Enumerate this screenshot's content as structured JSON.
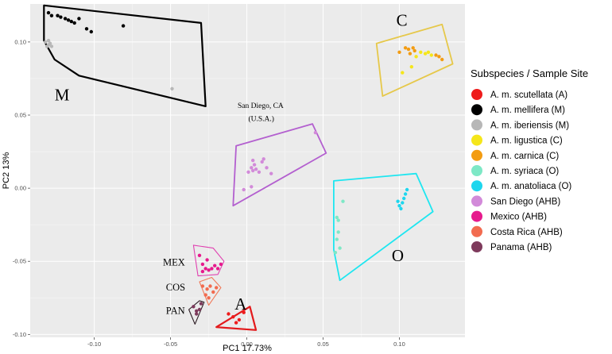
{
  "chart_data": {
    "type": "scatter",
    "xlabel": "PC1 17.73%",
    "ylabel": "PC2 13%",
    "xlim": [
      -0.142,
      0.143
    ],
    "ylim": [
      -0.102,
      0.126
    ],
    "xticks": [
      -0.1,
      -0.05,
      0.0,
      0.05,
      0.1
    ],
    "xtick_labels": [
      "-0.10",
      "-0.05",
      "0.00",
      "0.05",
      "0.10"
    ],
    "yticks": [
      -0.1,
      -0.05,
      0.0,
      0.05,
      0.1
    ],
    "ytick_labels": [
      "-0.10",
      "-0.05",
      "0.00",
      "0.05",
      "0.10"
    ],
    "grid": true,
    "legend": {
      "title": "Subspecies / Sample Site",
      "position": "right"
    },
    "series": [
      {
        "name": "A. m. scutellata (A)",
        "color": "#ee1c1c",
        "points": [
          [
            -0.012,
            -0.086
          ],
          [
            -0.009,
            -0.088
          ],
          [
            -0.005,
            -0.09
          ],
          [
            -0.007,
            -0.092
          ],
          [
            -0.002,
            -0.085
          ]
        ]
      },
      {
        "name": "A. m. mellifera (M)",
        "color": "#000000",
        "points": [
          [
            -0.13,
            0.12
          ],
          [
            -0.128,
            0.118
          ],
          [
            -0.124,
            0.118
          ],
          [
            -0.122,
            0.117
          ],
          [
            -0.119,
            0.116
          ],
          [
            -0.117,
            0.115
          ],
          [
            -0.115,
            0.114
          ],
          [
            -0.113,
            0.113
          ],
          [
            -0.11,
            0.116
          ],
          [
            -0.105,
            0.109
          ],
          [
            -0.102,
            0.107
          ],
          [
            -0.081,
            0.111
          ]
        ]
      },
      {
        "name": "A. m. iberiensis (M)",
        "color": "#b7b7b7",
        "points": [
          [
            -0.132,
            0.1
          ],
          [
            -0.13,
            0.098
          ],
          [
            -0.131,
            0.097
          ],
          [
            -0.129,
            0.099
          ],
          [
            -0.128,
            0.097
          ],
          [
            -0.13,
            0.101
          ],
          [
            -0.049,
            0.068
          ]
        ]
      },
      {
        "name": "A. m. ligustica (C)",
        "color": "#f5e61a",
        "points": [
          [
            0.102,
            0.079
          ],
          [
            0.108,
            0.083
          ],
          [
            0.111,
            0.09
          ],
          [
            0.114,
            0.093
          ],
          [
            0.117,
            0.092
          ],
          [
            0.119,
            0.093
          ],
          [
            0.121,
            0.091
          ]
        ]
      },
      {
        "name": "A. m. carnica (C)",
        "color": "#f39c12",
        "points": [
          [
            0.1,
            0.093
          ],
          [
            0.104,
            0.096
          ],
          [
            0.106,
            0.095
          ],
          [
            0.107,
            0.092
          ],
          [
            0.109,
            0.096
          ],
          [
            0.11,
            0.094
          ],
          [
            0.124,
            0.091
          ],
          [
            0.126,
            0.09
          ],
          [
            0.128,
            0.088
          ]
        ]
      },
      {
        "name": "A. m. syriaca (O)",
        "color": "#7ee8c6",
        "points": [
          [
            0.059,
            -0.02
          ],
          [
            0.06,
            -0.03
          ],
          [
            0.059,
            -0.035
          ],
          [
            0.061,
            -0.041
          ],
          [
            0.058,
            -0.044
          ],
          [
            0.06,
            -0.022
          ],
          [
            0.063,
            -0.009
          ]
        ]
      },
      {
        "name": "A. m. anatoliaca (O)",
        "color": "#1ed6ee",
        "points": [
          [
            0.099,
            -0.009
          ],
          [
            0.1,
            -0.012
          ],
          [
            0.101,
            -0.014
          ],
          [
            0.102,
            -0.01
          ],
          [
            0.103,
            -0.007
          ],
          [
            0.104,
            -0.004
          ],
          [
            0.105,
            -0.001
          ]
        ]
      },
      {
        "name": "San Diego (AHB)",
        "color": "#d28ad9",
        "points": [
          [
            -0.002,
            -0.001
          ],
          [
            0.003,
            0.001
          ],
          [
            0.001,
            0.011
          ],
          [
            0.003,
            0.014
          ],
          [
            0.004,
            0.012
          ],
          [
            0.005,
            0.016
          ],
          [
            0.006,
            0.013
          ],
          [
            0.004,
            0.019
          ],
          [
            0.008,
            0.011
          ],
          [
            0.01,
            0.018
          ],
          [
            0.011,
            0.02
          ],
          [
            0.013,
            0.014
          ],
          [
            0.016,
            0.01
          ],
          [
            0.045,
            0.038
          ]
        ]
      },
      {
        "name": "Mexico (AHB)",
        "color": "#e61a8d",
        "points": [
          [
            -0.031,
            -0.046
          ],
          [
            -0.029,
            -0.052
          ],
          [
            -0.027,
            -0.055
          ],
          [
            -0.025,
            -0.056
          ],
          [
            -0.023,
            -0.055
          ],
          [
            -0.021,
            -0.053
          ],
          [
            -0.019,
            -0.055
          ],
          [
            -0.017,
            -0.052
          ],
          [
            -0.026,
            -0.049
          ],
          [
            -0.029,
            -0.057
          ]
        ]
      },
      {
        "name": "Costa Rica (AHB)",
        "color": "#f26b4f",
        "points": [
          [
            -0.029,
            -0.067
          ],
          [
            -0.026,
            -0.069
          ],
          [
            -0.024,
            -0.067
          ],
          [
            -0.022,
            -0.071
          ],
          [
            -0.02,
            -0.068
          ],
          [
            -0.027,
            -0.073
          ],
          [
            -0.025,
            -0.075
          ]
        ]
      },
      {
        "name": "Panama (AHB)",
        "color": "#7e3a5c",
        "points": [
          [
            -0.035,
            -0.081
          ],
          [
            -0.033,
            -0.084
          ],
          [
            -0.031,
            -0.083
          ],
          [
            -0.033,
            -0.086
          ],
          [
            -0.03,
            -0.079
          ]
        ]
      }
    ],
    "hulls": [
      {
        "name": "M",
        "color": "#000000",
        "points": [
          [
            -0.133,
            0.125
          ],
          [
            -0.03,
            0.113
          ],
          [
            -0.027,
            0.056
          ],
          [
            -0.11,
            0.077
          ],
          [
            -0.126,
            0.088
          ],
          [
            -0.133,
            0.101
          ]
        ]
      },
      {
        "name": "C",
        "color": "#e6c84a",
        "points": [
          [
            0.085,
            0.099
          ],
          [
            0.128,
            0.112
          ],
          [
            0.135,
            0.085
          ],
          [
            0.089,
            0.063
          ]
        ]
      },
      {
        "name": "San Diego",
        "color": "#b35fcf",
        "points": [
          [
            -0.007,
            0.029
          ],
          [
            0.043,
            0.044
          ],
          [
            0.052,
            0.024
          ],
          [
            -0.009,
            -0.012
          ]
        ]
      },
      {
        "name": "O",
        "color": "#1ee6f0",
        "points": [
          [
            0.057,
            0.005
          ],
          [
            0.111,
            0.01
          ],
          [
            0.122,
            -0.016
          ],
          [
            0.061,
            -0.063
          ],
          [
            0.057,
            -0.042
          ]
        ]
      },
      {
        "name": "MEX",
        "color": "#e040b0",
        "points": [
          [
            -0.035,
            -0.039
          ],
          [
            -0.022,
            -0.041
          ],
          [
            -0.015,
            -0.05
          ],
          [
            -0.019,
            -0.059
          ],
          [
            -0.032,
            -0.06
          ]
        ]
      },
      {
        "name": "COS",
        "color": "#f07a5a",
        "points": [
          [
            -0.031,
            -0.064
          ],
          [
            -0.023,
            -0.061
          ],
          [
            -0.017,
            -0.068
          ],
          [
            -0.025,
            -0.08
          ]
        ]
      },
      {
        "name": "PAN",
        "color": "#2a1a22",
        "points": [
          [
            -0.038,
            -0.083
          ],
          [
            -0.031,
            -0.077
          ],
          [
            -0.028,
            -0.078
          ],
          [
            -0.034,
            -0.093
          ]
        ]
      },
      {
        "name": "A",
        "color": "#e31a1c",
        "points": [
          [
            -0.02,
            -0.095
          ],
          [
            0.002,
            -0.081
          ],
          [
            0.006,
            -0.097
          ]
        ]
      }
    ],
    "annotations": [
      {
        "text": "M",
        "x": -0.126,
        "y": 0.06,
        "size": "big"
      },
      {
        "text": "C",
        "x": 0.098,
        "y": 0.111,
        "size": "big"
      },
      {
        "text": "O",
        "x": 0.095,
        "y": -0.05,
        "size": "big"
      },
      {
        "text": "A",
        "x": -0.008,
        "y": -0.083,
        "size": "big"
      },
      {
        "text": "MEX",
        "x": -0.055,
        "y": -0.053,
        "size": "small"
      },
      {
        "text": "COS",
        "x": -0.053,
        "y": -0.07,
        "size": "small"
      },
      {
        "text": "PAN",
        "x": -0.053,
        "y": -0.086,
        "size": "small"
      },
      {
        "text": "San Diego, CA",
        "x": -0.006,
        "y": 0.055,
        "size": "site"
      },
      {
        "text": "(U.S.A.)",
        "x": 0.001,
        "y": 0.046,
        "size": "site"
      }
    ]
  }
}
